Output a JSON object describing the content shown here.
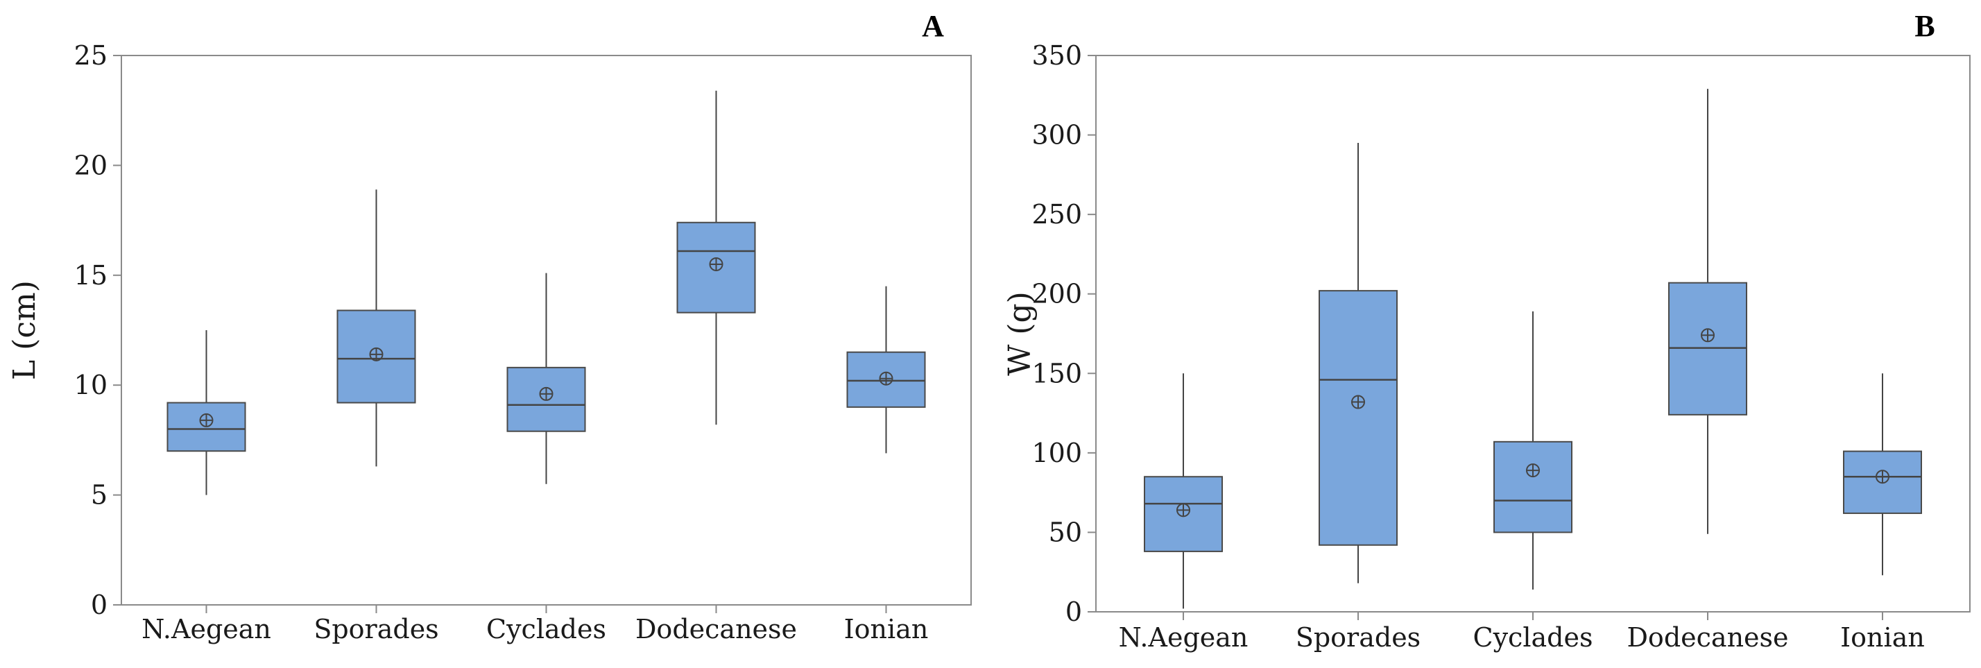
{
  "chart_data": [
    {
      "type": "boxplot",
      "panel_label": "A",
      "ylabel": "L (cm)",
      "xlabel": "",
      "ylim": [
        0,
        25
      ],
      "yticks": [
        0,
        5,
        10,
        15,
        20,
        25
      ],
      "categories": [
        "N.Aegean",
        "Sporades",
        "Cyclades",
        "Dodecanese",
        "Ionian"
      ],
      "boxes": [
        {
          "min": 5.0,
          "q1": 7.0,
          "median": 8.0,
          "q3": 9.2,
          "max": 12.5,
          "mean": 8.4
        },
        {
          "min": 6.3,
          "q1": 9.2,
          "median": 11.2,
          "q3": 13.4,
          "max": 18.9,
          "mean": 11.4
        },
        {
          "min": 5.5,
          "q1": 7.9,
          "median": 9.1,
          "q3": 10.8,
          "max": 15.1,
          "mean": 9.6
        },
        {
          "min": 8.2,
          "q1": 13.3,
          "median": 16.1,
          "q3": 17.4,
          "max": 23.4,
          "mean": 15.5
        },
        {
          "min": 6.9,
          "q1": 9.0,
          "median": 10.2,
          "q3": 11.5,
          "max": 14.5,
          "mean": 10.3
        }
      ]
    },
    {
      "type": "boxplot",
      "panel_label": "B",
      "ylabel": "W (g)",
      "xlabel": "",
      "ylim": [
        0,
        350
      ],
      "yticks": [
        0,
        50,
        100,
        150,
        200,
        250,
        300,
        350
      ],
      "categories": [
        "N.Aegean",
        "Sporades",
        "Cyclades",
        "Dodecanese",
        "Ionian"
      ],
      "boxes": [
        {
          "min": 2,
          "q1": 38,
          "median": 68,
          "q3": 85,
          "max": 150,
          "mean": 64
        },
        {
          "min": 18,
          "q1": 42,
          "median": 146,
          "q3": 202,
          "max": 295,
          "mean": 132
        },
        {
          "min": 14,
          "q1": 50,
          "median": 70,
          "q3": 107,
          "max": 189,
          "mean": 89
        },
        {
          "min": 49,
          "q1": 124,
          "median": 166,
          "q3": 207,
          "max": 329,
          "mean": 174
        },
        {
          "min": 23,
          "q1": 62,
          "median": 85,
          "q3": 101,
          "max": 150,
          "mean": 85
        }
      ]
    }
  ]
}
